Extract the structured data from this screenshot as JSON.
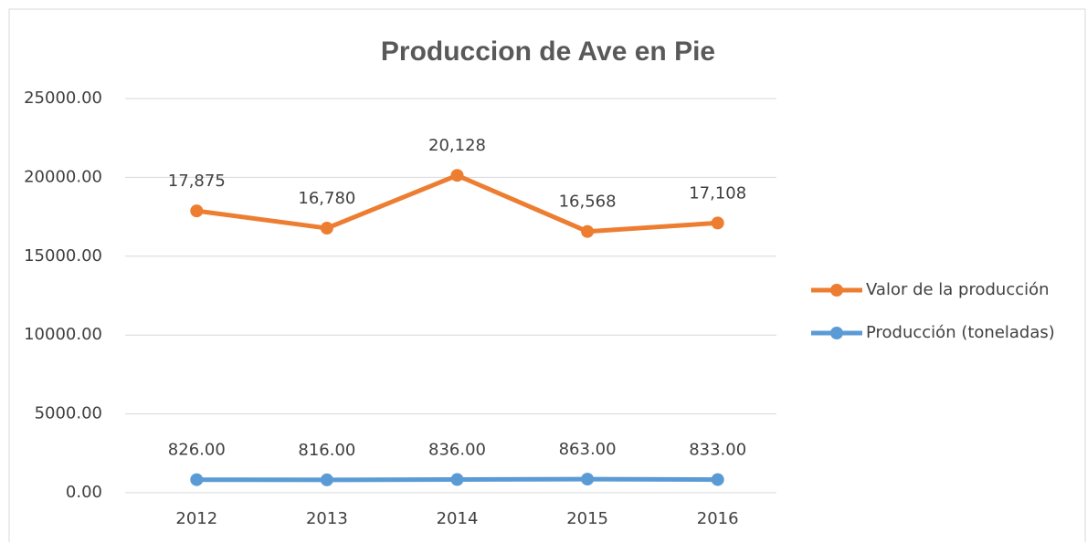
{
  "chart_data": {
    "type": "line",
    "title": "Produccion de Ave en Pie",
    "categories": [
      "2012",
      "2013",
      "2014",
      "2015",
      "2016"
    ],
    "series": [
      {
        "name": "Valor de la producción",
        "color": "#ed7d31",
        "values": [
          17875,
          16780,
          20128,
          16568,
          17108
        ],
        "value_labels": [
          "17,875",
          "16,780",
          "20,128",
          "16,568",
          "17,108"
        ]
      },
      {
        "name": "Producción (toneladas)",
        "color": "#5b9bd5",
        "values": [
          826,
          816,
          836,
          863,
          833
        ],
        "value_labels": [
          "826.00",
          "816.00",
          "836.00",
          "863.00",
          "833.00"
        ]
      }
    ],
    "ylim": [
      0,
      25000
    ],
    "yticks": [
      {
        "value": 0,
        "label": "0.00"
      },
      {
        "value": 5000,
        "label": "5000.00"
      },
      {
        "value": 10000,
        "label": "10000.00"
      },
      {
        "value": 15000,
        "label": "15000.00"
      },
      {
        "value": 20000,
        "label": "20000.00"
      },
      {
        "value": 25000,
        "label": "25000.00"
      }
    ],
    "grid": true,
    "legend": "right"
  }
}
